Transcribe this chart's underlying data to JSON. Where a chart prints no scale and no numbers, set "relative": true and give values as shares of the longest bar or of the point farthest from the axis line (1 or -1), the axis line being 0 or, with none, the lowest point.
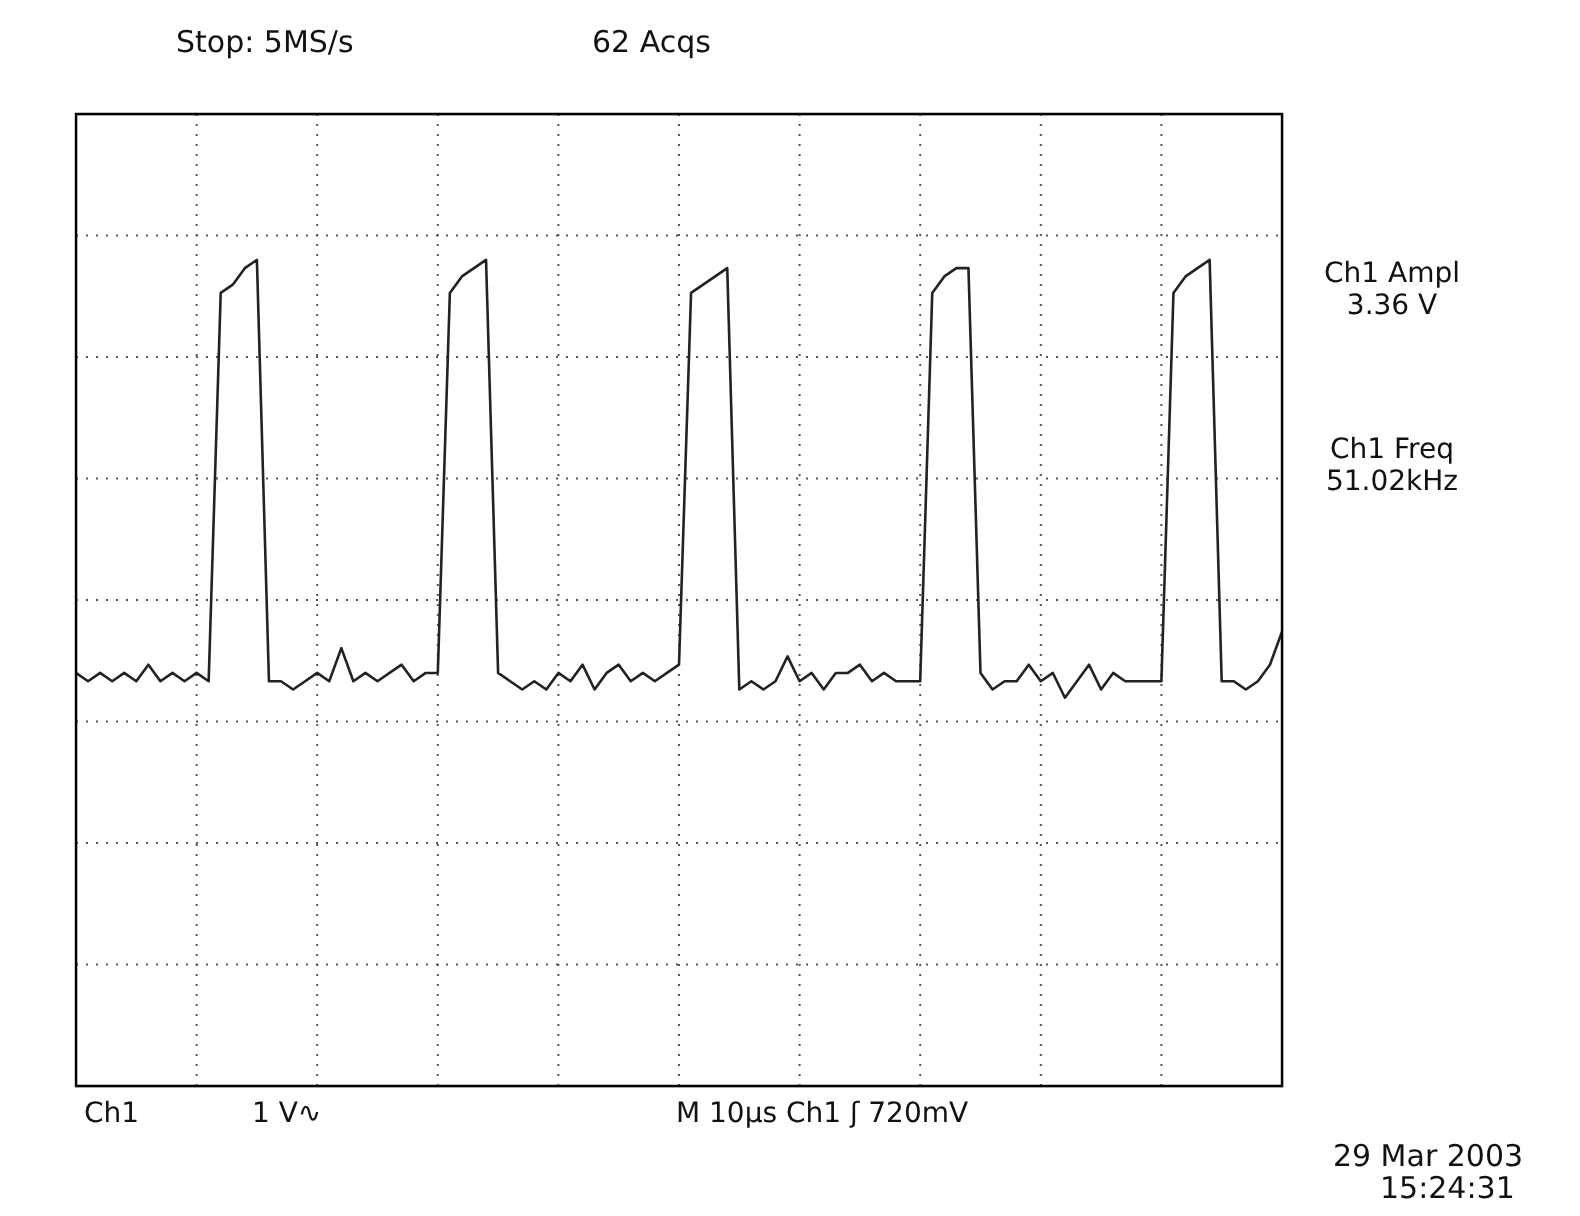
{
  "chart_data": {
    "type": "line",
    "relative": true,
    "categories": [
      null,
      null,
      null,
      null,
      null,
      null,
      null,
      null,
      null,
      null,
      null,
      null,
      null,
      null,
      null,
      null,
      null,
      null,
      null,
      null,
      null,
      null,
      null,
      null,
      null,
      null,
      null,
      null,
      null,
      null,
      null,
      null,
      null,
      null,
      null,
      null,
      null,
      null,
      null,
      null,
      null,
      null,
      null,
      null,
      null,
      null,
      null,
      null,
      null,
      null,
      null,
      null,
      null,
      null,
      null,
      null,
      null,
      null,
      null,
      null,
      null,
      null,
      null,
      null,
      null,
      null,
      null,
      null,
      null,
      null,
      null,
      null,
      null,
      null,
      null,
      null,
      null,
      null,
      null,
      null,
      null,
      null,
      null,
      null,
      null,
      null,
      null,
      null,
      null,
      null,
      null,
      null,
      null,
      null,
      null,
      null,
      null,
      null,
      null,
      null,
      null
    ],
    "series": [
      {
        "color": "#222222",
        "values": [
          0.5,
          0.49,
          0.5,
          0.49,
          0.5,
          0.49,
          0.51,
          0.49,
          0.5,
          0.49,
          0.5,
          0.49,
          0.96,
          0.97,
          0.99,
          1.0,
          0.49,
          0.49,
          0.48,
          0.49,
          0.5,
          0.49,
          0.53,
          0.49,
          0.5,
          0.49,
          0.5,
          0.51,
          0.49,
          0.5,
          0.5,
          0.96,
          0.98,
          0.99,
          1.0,
          0.5,
          0.49,
          0.48,
          0.49,
          0.48,
          0.5,
          0.49,
          0.51,
          0.48,
          0.5,
          0.51,
          0.49,
          0.5,
          0.49,
          0.5,
          0.51,
          0.96,
          0.97,
          0.98,
          0.99,
          0.48,
          0.49,
          0.48,
          0.49,
          0.52,
          0.49,
          0.5,
          0.48,
          0.5,
          0.5,
          0.51,
          0.49,
          0.5,
          0.49,
          0.49,
          0.49,
          0.96,
          0.98,
          0.99,
          0.99,
          0.5,
          0.48,
          0.49,
          0.49,
          0.51,
          0.49,
          0.5,
          0.47,
          0.49,
          0.51,
          0.48,
          0.5,
          0.49,
          0.49,
          0.49,
          0.49,
          0.96,
          0.98,
          0.99,
          1.0,
          0.49,
          0.49,
          0.48,
          0.49,
          0.51,
          0.55
        ]
      }
    ],
    "grid": true,
    "annotations": [
      "Stop: 5MS/s",
      "62 Acqs",
      "Ch1 Ampl",
      "3.36 V",
      "Ch1 Freq",
      "51.02kHz",
      "Ch1",
      "1 V∿",
      "M  10µs  Ch1  ʃ  720mV",
      "29 Mar 2003",
      "15:24:31"
    ]
  }
}
